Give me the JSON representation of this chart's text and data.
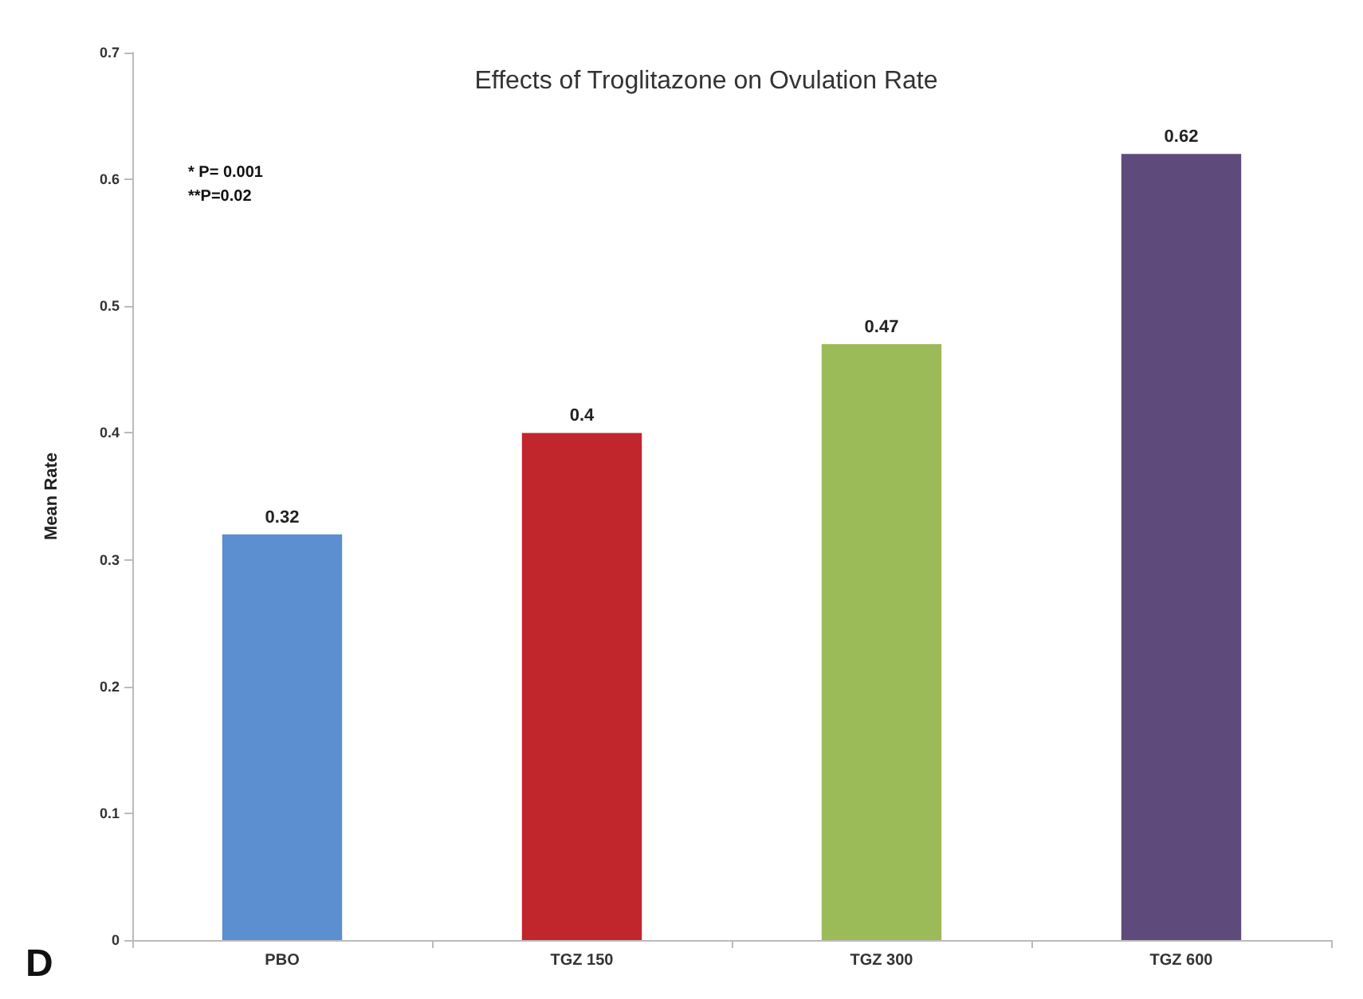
{
  "chart_data": {
    "type": "bar",
    "title": "Effects of Troglitazone on Ovulation Rate",
    "ylabel": "Mean Rate",
    "categories": [
      "PBO",
      "TGZ 150",
      "TGZ 300",
      "TGZ 600"
    ],
    "values": [
      0.32,
      0.4,
      0.47,
      0.62
    ],
    "colors": [
      "#5b8fd0",
      "#c0262c",
      "#9bbb59",
      "#5f4a7c"
    ],
    "ylim": [
      0,
      0.7
    ],
    "yticks": [
      0,
      0.1,
      0.2,
      0.3,
      0.4,
      0.5,
      0.6,
      0.7
    ],
    "data_labels": true,
    "grid": false,
    "annotations": [
      "* P= 0.001\n**P=0.02",
      "D"
    ]
  }
}
